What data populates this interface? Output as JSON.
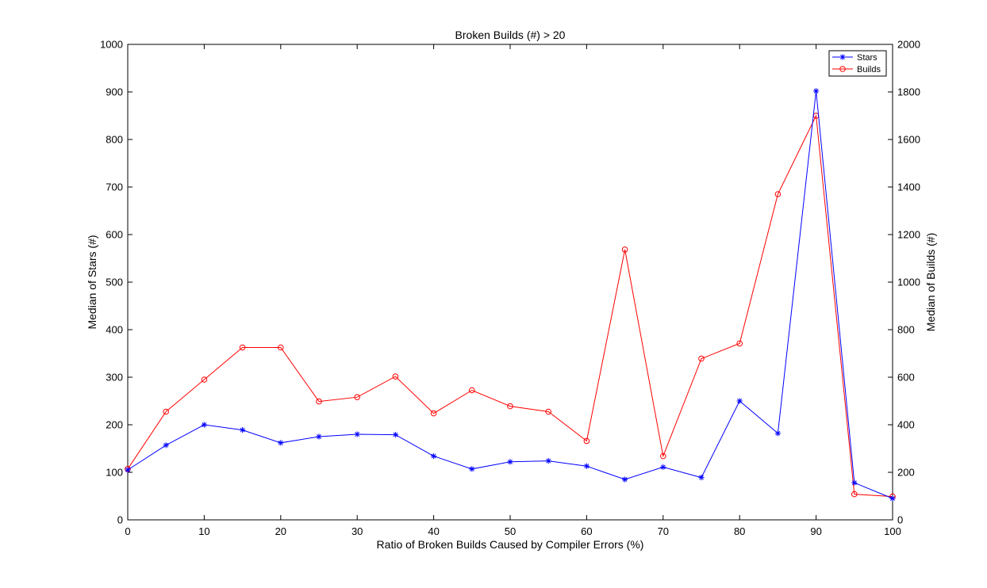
{
  "chart_data": {
    "type": "line",
    "title": "Broken Builds (#) > 20",
    "xlabel": "Ratio of Broken Builds Caused by Compiler Errors (%)",
    "ylabel_left": "Median of Stars (#)",
    "ylabel_right": "Median of Builds (#)",
    "xlim": [
      0,
      100
    ],
    "ylim_left": [
      0,
      1000
    ],
    "ylim_right": [
      0,
      2000
    ],
    "x_ticks": [
      0,
      10,
      20,
      30,
      40,
      50,
      60,
      70,
      80,
      90,
      100
    ],
    "y_left_ticks": [
      0,
      100,
      200,
      300,
      400,
      500,
      600,
      700,
      800,
      900,
      1000
    ],
    "y_right_ticks": [
      0,
      200,
      400,
      600,
      800,
      1000,
      1200,
      1400,
      1600,
      1800,
      2000
    ],
    "grid": false,
    "legend_position": "top-right",
    "x": [
      0,
      5,
      10,
      15,
      20,
      25,
      30,
      35,
      40,
      45,
      50,
      55,
      60,
      65,
      70,
      75,
      80,
      85,
      90,
      95,
      100
    ],
    "series": [
      {
        "name": "Stars",
        "axis": "left",
        "color": "#0000ff",
        "marker": "asterisk",
        "values": [
          105,
          157,
          200,
          189,
          162,
          175,
          180,
          179,
          134,
          107,
          122,
          124,
          113,
          85,
          111,
          89,
          250,
          182,
          902,
          78,
          45
        ]
      },
      {
        "name": "Builds",
        "axis": "right",
        "color": "#ff0000",
        "marker": "circle",
        "values": [
          214,
          455,
          590,
          725,
          725,
          498,
          516,
          603,
          448,
          545,
          478,
          455,
          332,
          1137,
          268,
          678,
          742,
          1370,
          1700,
          108,
          98
        ]
      }
    ]
  }
}
